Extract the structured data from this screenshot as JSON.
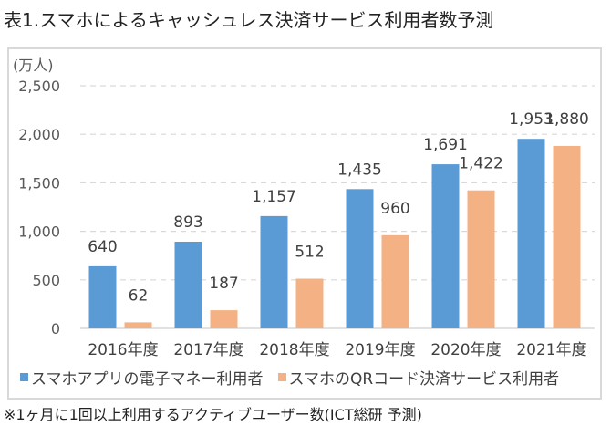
{
  "title": "表1.スマホによるキャッシュレス決済サービス利用者数予測",
  "footnote": "※1ヶ月に1回以上利用するアクティブユーザー数(ICT総研 予測)",
  "colors": {
    "series1": "#5b9bd5",
    "series2": "#f4b183",
    "grid": "#d9d9d9",
    "frame": "#d9d9d9"
  },
  "chart_data": {
    "type": "bar",
    "title": "表1.スマホによるキャッシュレス決済サービス利用者数予測",
    "ylabel": "(万人)",
    "xlabel": "",
    "categories": [
      "2016年度",
      "2017年度",
      "2018年度",
      "2019年度",
      "2020年度",
      "2021年度"
    ],
    "series": [
      {
        "name": "スマホアプリの電子マネー利用者",
        "values": [
          640,
          893,
          1157,
          1435,
          1691,
          1953
        ],
        "labels": [
          "640",
          "893",
          "1,157",
          "1,435",
          "1,691",
          "1,953"
        ]
      },
      {
        "name": "スマホのQRコード決済サービス利用者",
        "values": [
          62,
          187,
          512,
          960,
          1422,
          1880
        ],
        "labels": [
          "62",
          "187",
          "512",
          "960",
          "1,422",
          "1,880"
        ]
      }
    ],
    "ylim": [
      0,
      2500
    ],
    "yticks": [
      0,
      500,
      1000,
      1500,
      2000,
      2500
    ],
    "ytick_labels": [
      "0",
      "500",
      "1,000",
      "1,500",
      "2,000",
      "2,500"
    ],
    "grid": true,
    "grid_style": "dashed",
    "legend_position": "bottom"
  }
}
